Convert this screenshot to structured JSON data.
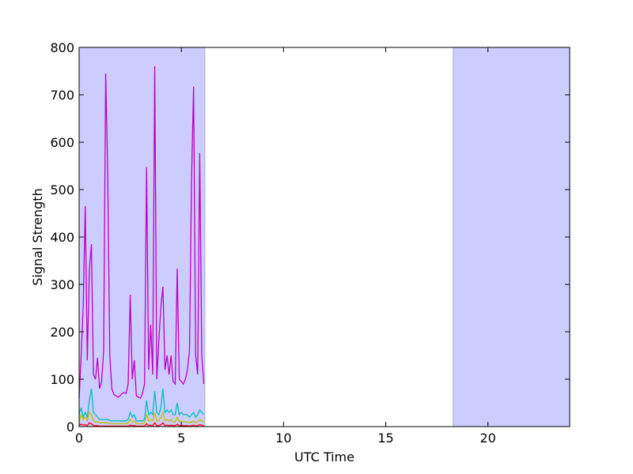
{
  "chart_data": {
    "type": "line",
    "xlabel": "UTC Time",
    "ylabel": "Signal Strength",
    "xlim": [
      0,
      24
    ],
    "xticks": [
      0,
      5,
      10,
      15,
      20
    ],
    "ylim": [
      0,
      800
    ],
    "yticks": [
      0,
      100,
      200,
      300,
      400,
      500,
      600,
      700,
      800
    ],
    "spans": [
      [
        0,
        6.15
      ],
      [
        18.3,
        24
      ]
    ],
    "span_color": "#ccccff",
    "x": [
      0.0,
      0.1,
      0.2,
      0.3,
      0.4,
      0.5,
      0.6,
      0.7,
      0.8,
      0.9,
      1.0,
      1.1,
      1.2,
      1.3,
      1.4,
      1.5,
      1.6,
      1.7,
      1.8,
      1.9,
      2.0,
      2.1,
      2.2,
      2.3,
      2.4,
      2.5,
      2.6,
      2.7,
      2.8,
      2.9,
      3.0,
      3.1,
      3.2,
      3.3,
      3.4,
      3.5,
      3.6,
      3.7,
      3.8,
      3.9,
      4.0,
      4.1,
      4.2,
      4.3,
      4.4,
      4.5,
      4.6,
      4.7,
      4.8,
      4.9,
      5.0,
      5.1,
      5.2,
      5.3,
      5.4,
      5.5,
      5.6,
      5.7,
      5.8,
      5.9,
      6.0,
      6.1
    ],
    "series": [
      {
        "color": "#bf00bf",
        "values": [
          60,
          150,
          255,
          465,
          140,
          330,
          385,
          110,
          100,
          145,
          80,
          95,
          160,
          745,
          530,
          150,
          80,
          68,
          65,
          62,
          65,
          70,
          72,
          70,
          90,
          278,
          100,
          140,
          65,
          62,
          60,
          70,
          90,
          547,
          120,
          215,
          110,
          760,
          100,
          180,
          255,
          295,
          120,
          150,
          110,
          150,
          95,
          90,
          333,
          100,
          95,
          90,
          100,
          120,
          160,
          522,
          717,
          150,
          110,
          577,
          150,
          90
        ]
      },
      {
        "color": "#00bfbf",
        "values": [
          25,
          40,
          20,
          30,
          20,
          55,
          80,
          30,
          25,
          20,
          15,
          15,
          15,
          15,
          15,
          13,
          12,
          12,
          12,
          12,
          12,
          12,
          12,
          12,
          15,
          30,
          20,
          25,
          12,
          12,
          12,
          12,
          15,
          55,
          25,
          30,
          25,
          75,
          30,
          25,
          40,
          80,
          30,
          35,
          30,
          35,
          25,
          25,
          50,
          25,
          30,
          25,
          25,
          25,
          20,
          25,
          30,
          20,
          25,
          35,
          30,
          25
        ]
      },
      {
        "color": "#bfbf00",
        "values": [
          10,
          25,
          15,
          20,
          12,
          30,
          25,
          12,
          10,
          10,
          8,
          8,
          8,
          8,
          8,
          6,
          6,
          6,
          6,
          6,
          6,
          6,
          6,
          6,
          8,
          15,
          10,
          12,
          6,
          6,
          6,
          6,
          8,
          25,
          12,
          15,
          12,
          30,
          12,
          12,
          20,
          30,
          12,
          15,
          12,
          15,
          10,
          10,
          20,
          10,
          12,
          10,
          10,
          10,
          8,
          10,
          12,
          8,
          10,
          15,
          12,
          10
        ]
      },
      {
        "color": "#ff0000",
        "values": [
          2,
          5,
          3,
          4,
          2,
          8,
          6,
          2,
          2,
          2,
          1,
          1,
          1,
          1,
          1,
          1,
          1,
          1,
          1,
          1,
          1,
          1,
          1,
          1,
          1,
          3,
          2,
          2,
          1,
          1,
          1,
          1,
          1,
          6,
          2,
          3,
          2,
          8,
          2,
          2,
          4,
          8,
          2,
          3,
          2,
          3,
          2,
          2,
          5,
          2,
          2,
          2,
          2,
          2,
          1,
          2,
          3,
          1,
          2,
          4,
          3,
          2
        ]
      }
    ]
  }
}
